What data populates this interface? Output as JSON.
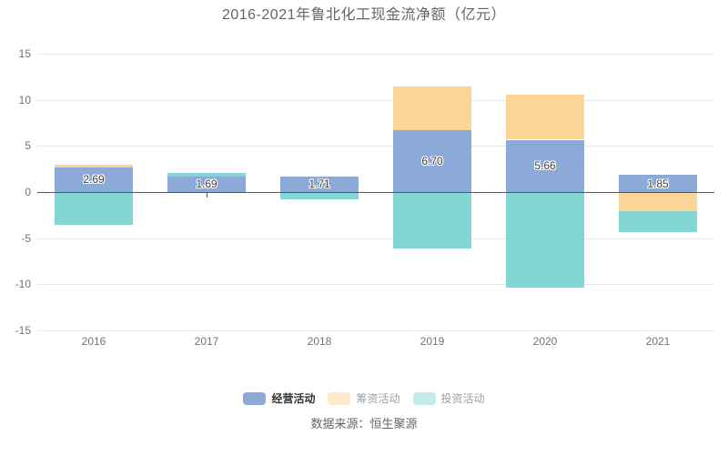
{
  "title": "2016-2021年鲁北化工现金流净额（亿元）",
  "source": "数据来源：恒生聚源",
  "chart_data": {
    "type": "bar",
    "stacked": true,
    "title": "2016-2021年鲁北化工现金流净额（亿元）",
    "categories": [
      "2016",
      "2017",
      "2018",
      "2019",
      "2020",
      "2021"
    ],
    "series": [
      {
        "name": "经营活动",
        "color": "#8caad8",
        "values": [
          2.69,
          1.69,
          1.71,
          6.7,
          5.66,
          1.85
        ],
        "labels": [
          "2.69",
          "1.69",
          "1.71",
          "6.70",
          "5.66",
          "1.85"
        ]
      },
      {
        "name": "筹资活动",
        "color": "#fbd596",
        "values": [
          0.3,
          0,
          0,
          4.75,
          4.85,
          -2.1
        ],
        "labels": null
      },
      {
        "name": "投资活动",
        "color": "#84d6d4",
        "values": [
          -3.6,
          0.35,
          -0.75,
          -6.15,
          -10.35,
          -2.25
        ],
        "labels": null
      }
    ],
    "ylim": [
      -15,
      15
    ],
    "yticks": [
      15,
      10,
      5,
      0,
      -5,
      -10,
      -15
    ],
    "xlabel": "",
    "ylabel": "",
    "grid": true,
    "legend_position": "bottom",
    "legend_active": [
      true,
      false,
      false
    ]
  },
  "style": {
    "grid_color": "#e3e9f3",
    "zero_line_color": "#54575e",
    "axis_text_color": "#6e737b",
    "title_color": "#666666",
    "bar_label_color": "#3f3f3f"
  }
}
